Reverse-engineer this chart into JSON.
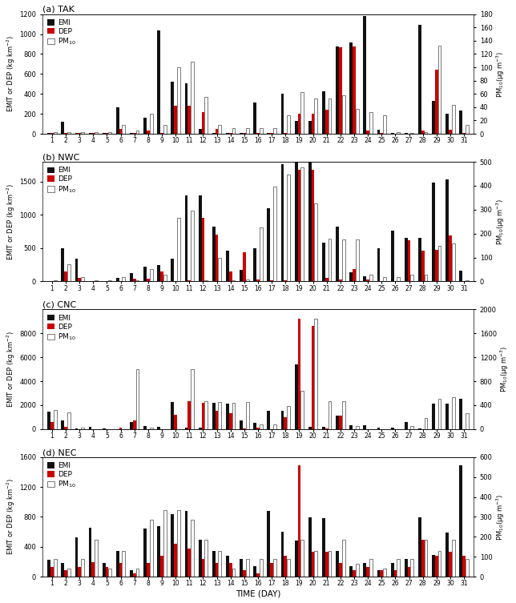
{
  "panels": [
    {
      "title": "(a) TAK",
      "ylim_left": [
        0,
        1200
      ],
      "ylim_right": [
        0,
        180
      ],
      "yticks_left": [
        0,
        200,
        400,
        600,
        800,
        1000,
        1200
      ],
      "yticks_right": [
        0,
        20,
        40,
        60,
        80,
        100,
        120,
        140,
        160,
        180
      ],
      "EMI": [
        5,
        120,
        5,
        5,
        5,
        265,
        5,
        160,
        1040,
        520,
        510,
        50,
        5,
        5,
        5,
        310,
        5,
        400,
        130,
        130,
        430,
        880,
        920,
        1185,
        40,
        5,
        5,
        1095,
        330,
        200,
        230
      ],
      "DEP": [
        5,
        5,
        5,
        5,
        5,
        50,
        5,
        30,
        5,
        285,
        285,
        220,
        50,
        10,
        5,
        5,
        5,
        5,
        200,
        200,
        245,
        870,
        880,
        30,
        5,
        2,
        2,
        30,
        645,
        40,
        5
      ],
      "PM10": [
        3,
        3,
        3,
        3,
        3,
        13,
        5,
        30,
        13,
        100,
        108,
        55,
        13,
        8,
        8,
        8,
        8,
        28,
        63,
        53,
        53,
        58,
        38,
        33,
        28,
        3,
        1,
        3,
        133,
        43,
        13
      ]
    },
    {
      "title": "(b) NWC",
      "ylim_left": [
        0,
        1800
      ],
      "ylim_right": [
        0,
        500
      ],
      "yticks_left": [
        0,
        500,
        1000,
        1500
      ],
      "yticks_right": [
        0,
        100,
        200,
        300,
        400,
        500
      ],
      "EMI": [
        5,
        500,
        340,
        5,
        5,
        50,
        130,
        220,
        250,
        340,
        1290,
        1295,
        820,
        460,
        175,
        500,
        1100,
        1770,
        1800,
        1800,
        580,
        820,
        140,
        75,
        500,
        760,
        660,
        660,
        1490,
        1540,
        160
      ],
      "DEP": [
        5,
        150,
        50,
        5,
        5,
        5,
        40,
        40,
        150,
        5,
        20,
        960,
        700,
        150,
        440,
        30,
        20,
        20,
        1680,
        1680,
        50,
        30,
        185,
        30,
        5,
        5,
        615,
        460,
        480,
        695,
        10
      ],
      "PM10": [
        3,
        73,
        18,
        3,
        3,
        18,
        3,
        50,
        28,
        265,
        295,
        5,
        98,
        3,
        8,
        225,
        398,
        448,
        478,
        325,
        178,
        175,
        175,
        28,
        18,
        18,
        28,
        28,
        148,
        158,
        3
      ]
    },
    {
      "title": "(c) CNC",
      "ylim_left": [
        0,
        10000
      ],
      "ylim_right": [
        0,
        2000
      ],
      "yticks_left": [
        0,
        2000,
        4000,
        6000,
        8000
      ],
      "yticks_right": [
        0,
        400,
        800,
        1200,
        1600,
        2000
      ],
      "EMI": [
        1480,
        700,
        50,
        200,
        30,
        0,
        580,
        240,
        200,
        2250,
        150,
        150,
        2200,
        2100,
        700,
        550,
        1550,
        1500,
        5400,
        200,
        200,
        1100,
        350,
        350,
        100,
        100,
        600,
        50,
        2100,
        2150,
        2550
      ],
      "DEP": [
        600,
        200,
        0,
        0,
        0,
        100,
        700,
        0,
        0,
        1200,
        2300,
        2200,
        1500,
        1350,
        30,
        100,
        0,
        1000,
        9200,
        8600,
        75,
        1150,
        0,
        0,
        0,
        0,
        0,
        0,
        0,
        0,
        0
      ],
      "PM10": [
        320,
        280,
        30,
        0,
        0,
        0,
        1000,
        20,
        0,
        0,
        1000,
        460,
        450,
        440,
        450,
        80,
        80,
        380,
        640,
        1850,
        470,
        460,
        50,
        0,
        0,
        0,
        50,
        180,
        500,
        530,
        270
      ]
    },
    {
      "title": "(d) NEC",
      "ylim_left": [
        0,
        1600
      ],
      "ylim_right": [
        0,
        600
      ],
      "yticks_left": [
        0,
        400,
        800,
        1200,
        1600
      ],
      "yticks_right": [
        0,
        100,
        200,
        300,
        400,
        500,
        600
      ],
      "EMI": [
        230,
        180,
        530,
        650,
        180,
        340,
        90,
        640,
        680,
        840,
        880,
        490,
        340,
        280,
        240,
        140,
        880,
        600,
        480,
        790,
        780,
        340,
        140,
        180,
        90,
        185,
        235,
        790,
        290,
        590,
        1490
      ],
      "DEP": [
        130,
        90,
        130,
        190,
        130,
        185,
        40,
        185,
        285,
        440,
        380,
        235,
        185,
        185,
        90,
        40,
        185,
        285,
        1490,
        335,
        335,
        185,
        90,
        130,
        90,
        90,
        130,
        490,
        285,
        335,
        285
      ],
      "PM10": [
        90,
        40,
        90,
        185,
        40,
        130,
        40,
        285,
        335,
        335,
        285,
        185,
        130,
        40,
        90,
        90,
        90,
        90,
        185,
        130,
        130,
        185,
        65,
        90,
        40,
        90,
        90,
        185,
        130,
        185,
        90
      ]
    }
  ],
  "days": [
    1,
    2,
    3,
    4,
    5,
    6,
    7,
    8,
    9,
    10,
    11,
    12,
    13,
    14,
    15,
    16,
    17,
    18,
    19,
    20,
    21,
    22,
    23,
    24,
    25,
    26,
    27,
    28,
    29,
    30,
    31
  ],
  "xlabel": "TIME (DAY)",
  "ylabel_left": "EMIT or DEP (kg km$^{-2}$)",
  "ylabel_right_template": "PM$_{10}$(μg m$^{-3}$)",
  "emi_color": "#111111",
  "dep_color": "#cc0000",
  "pm10_color": "#ffffff",
  "pm10_edgecolor": "#444444"
}
